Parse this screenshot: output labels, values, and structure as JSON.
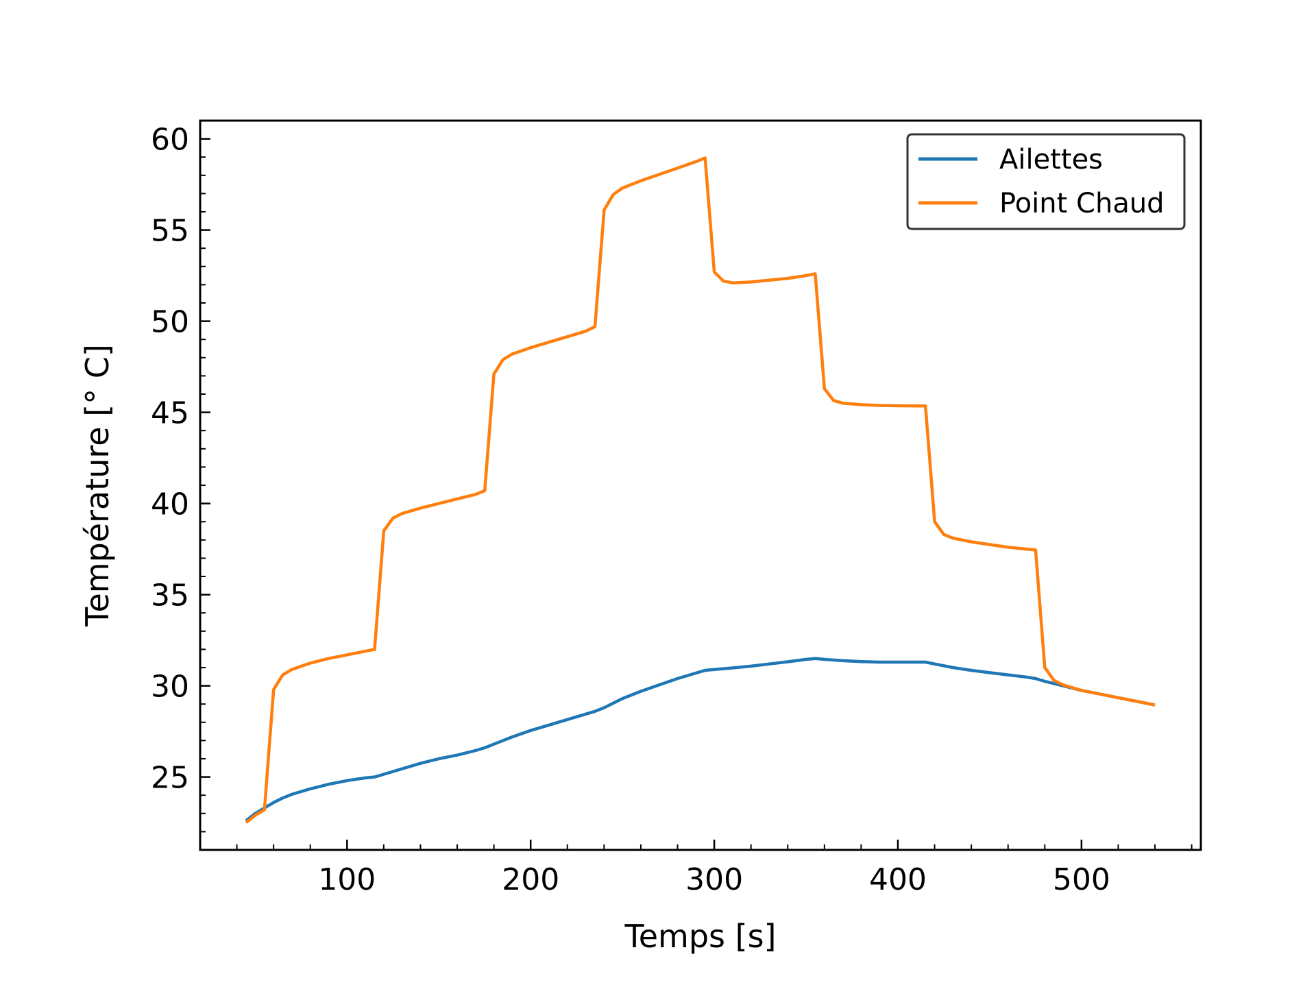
{
  "chart_data": {
    "type": "line",
    "xlabel": "Temps [s]",
    "ylabel": "Température [° C]",
    "xlim": [
      20,
      565
    ],
    "ylim": [
      21,
      61
    ],
    "xticks": [
      100,
      200,
      300,
      400,
      500
    ],
    "yticks": [
      25,
      30,
      35,
      40,
      45,
      50,
      55,
      60
    ],
    "x_minor_step": 20,
    "y_minor_step": 1,
    "grid": false,
    "legend_position": "top-right",
    "series": [
      {
        "name": "Ailettes",
        "color": "#1f77b4",
        "points": [
          [
            45,
            22.6
          ],
          [
            50,
            23.0
          ],
          [
            55,
            23.3
          ],
          [
            60,
            23.6
          ],
          [
            65,
            23.85
          ],
          [
            70,
            24.05
          ],
          [
            80,
            24.35
          ],
          [
            90,
            24.6
          ],
          [
            100,
            24.8
          ],
          [
            110,
            24.95
          ],
          [
            115,
            25.0
          ],
          [
            120,
            25.15
          ],
          [
            130,
            25.45
          ],
          [
            140,
            25.75
          ],
          [
            150,
            26.0
          ],
          [
            160,
            26.2
          ],
          [
            170,
            26.45
          ],
          [
            175,
            26.6
          ],
          [
            180,
            26.8
          ],
          [
            190,
            27.2
          ],
          [
            200,
            27.55
          ],
          [
            210,
            27.85
          ],
          [
            220,
            28.15
          ],
          [
            230,
            28.45
          ],
          [
            235,
            28.6
          ],
          [
            240,
            28.8
          ],
          [
            250,
            29.3
          ],
          [
            260,
            29.7
          ],
          [
            270,
            30.05
          ],
          [
            280,
            30.4
          ],
          [
            290,
            30.7
          ],
          [
            295,
            30.85
          ],
          [
            300,
            30.9
          ],
          [
            310,
            30.98
          ],
          [
            320,
            31.08
          ],
          [
            330,
            31.2
          ],
          [
            340,
            31.32
          ],
          [
            350,
            31.45
          ],
          [
            355,
            31.5
          ],
          [
            360,
            31.45
          ],
          [
            370,
            31.38
          ],
          [
            380,
            31.33
          ],
          [
            390,
            31.3
          ],
          [
            400,
            31.3
          ],
          [
            410,
            31.3
          ],
          [
            415,
            31.3
          ],
          [
            420,
            31.2
          ],
          [
            430,
            31.0
          ],
          [
            440,
            30.85
          ],
          [
            450,
            30.72
          ],
          [
            460,
            30.6
          ],
          [
            470,
            30.48
          ],
          [
            475,
            30.4
          ],
          [
            480,
            30.25
          ],
          [
            490,
            30.0
          ],
          [
            500,
            29.75
          ],
          [
            510,
            29.55
          ],
          [
            520,
            29.35
          ],
          [
            530,
            29.15
          ],
          [
            540,
            28.95
          ]
        ]
      },
      {
        "name": "Point Chaud",
        "color": "#ff7f0e",
        "points": [
          [
            45,
            22.5
          ],
          [
            50,
            22.9
          ],
          [
            55,
            23.2
          ],
          [
            60,
            29.8
          ],
          [
            65,
            30.6
          ],
          [
            70,
            30.9
          ],
          [
            80,
            31.25
          ],
          [
            90,
            31.5
          ],
          [
            100,
            31.7
          ],
          [
            110,
            31.9
          ],
          [
            115,
            32.0
          ],
          [
            120,
            38.5
          ],
          [
            125,
            39.2
          ],
          [
            130,
            39.45
          ],
          [
            140,
            39.75
          ],
          [
            150,
            40.0
          ],
          [
            160,
            40.25
          ],
          [
            170,
            40.5
          ],
          [
            175,
            40.7
          ],
          [
            180,
            47.1
          ],
          [
            185,
            47.9
          ],
          [
            190,
            48.2
          ],
          [
            200,
            48.55
          ],
          [
            210,
            48.85
          ],
          [
            220,
            49.15
          ],
          [
            230,
            49.45
          ],
          [
            235,
            49.7
          ],
          [
            240,
            56.1
          ],
          [
            245,
            56.95
          ],
          [
            250,
            57.3
          ],
          [
            260,
            57.7
          ],
          [
            270,
            58.05
          ],
          [
            280,
            58.4
          ],
          [
            290,
            58.75
          ],
          [
            295,
            58.95
          ],
          [
            300,
            52.7
          ],
          [
            305,
            52.2
          ],
          [
            310,
            52.1
          ],
          [
            320,
            52.15
          ],
          [
            330,
            52.25
          ],
          [
            340,
            52.35
          ],
          [
            350,
            52.5
          ],
          [
            355,
            52.6
          ],
          [
            360,
            46.3
          ],
          [
            365,
            45.65
          ],
          [
            370,
            45.5
          ],
          [
            380,
            45.42
          ],
          [
            390,
            45.38
          ],
          [
            400,
            45.36
          ],
          [
            410,
            45.35
          ],
          [
            415,
            45.35
          ],
          [
            420,
            39.0
          ],
          [
            425,
            38.3
          ],
          [
            430,
            38.1
          ],
          [
            440,
            37.9
          ],
          [
            450,
            37.75
          ],
          [
            460,
            37.6
          ],
          [
            470,
            37.5
          ],
          [
            475,
            37.45
          ],
          [
            480,
            31.0
          ],
          [
            485,
            30.3
          ],
          [
            490,
            30.05
          ],
          [
            500,
            29.75
          ],
          [
            510,
            29.55
          ],
          [
            520,
            29.35
          ],
          [
            530,
            29.15
          ],
          [
            540,
            28.95
          ]
        ]
      }
    ]
  }
}
